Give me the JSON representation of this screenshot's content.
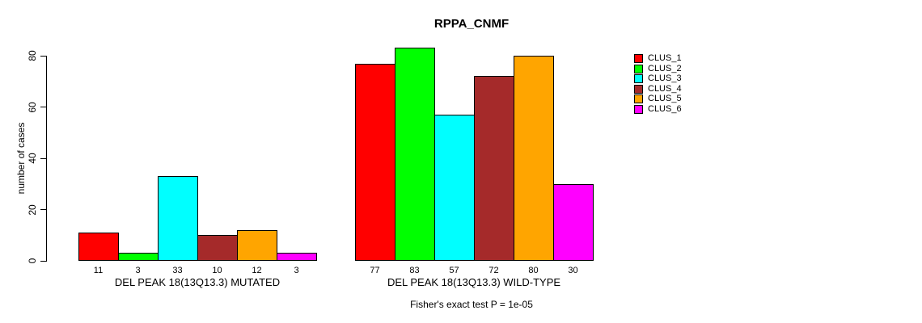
{
  "chart_data": {
    "type": "bar",
    "title": "RPPA_CNMF",
    "ylabel": "number of cases",
    "xlabel": "",
    "ylim": [
      0,
      80
    ],
    "yticks": [
      0,
      20,
      40,
      60,
      80
    ],
    "grid": false,
    "legend_position": "right",
    "series_names": [
      "CLUS_1",
      "CLUS_2",
      "CLUS_3",
      "CLUS_4",
      "CLUS_5",
      "CLUS_6"
    ],
    "colors": [
      "#FF0000",
      "#00FF00",
      "#00FFFF",
      "#A52A2A",
      "#FFA500",
      "#FF00FF"
    ],
    "groups": [
      {
        "label": "DEL PEAK 18(13Q13.3) MUTATED",
        "values": [
          11,
          3,
          33,
          10,
          12,
          3
        ]
      },
      {
        "label": "DEL PEAK 18(13Q13.3) WILD-TYPE",
        "values": [
          77,
          83,
          57,
          72,
          80,
          30
        ]
      }
    ],
    "bar_value_labels_shown": true,
    "annotation": "Fisher's exact test P = 1e-05"
  }
}
